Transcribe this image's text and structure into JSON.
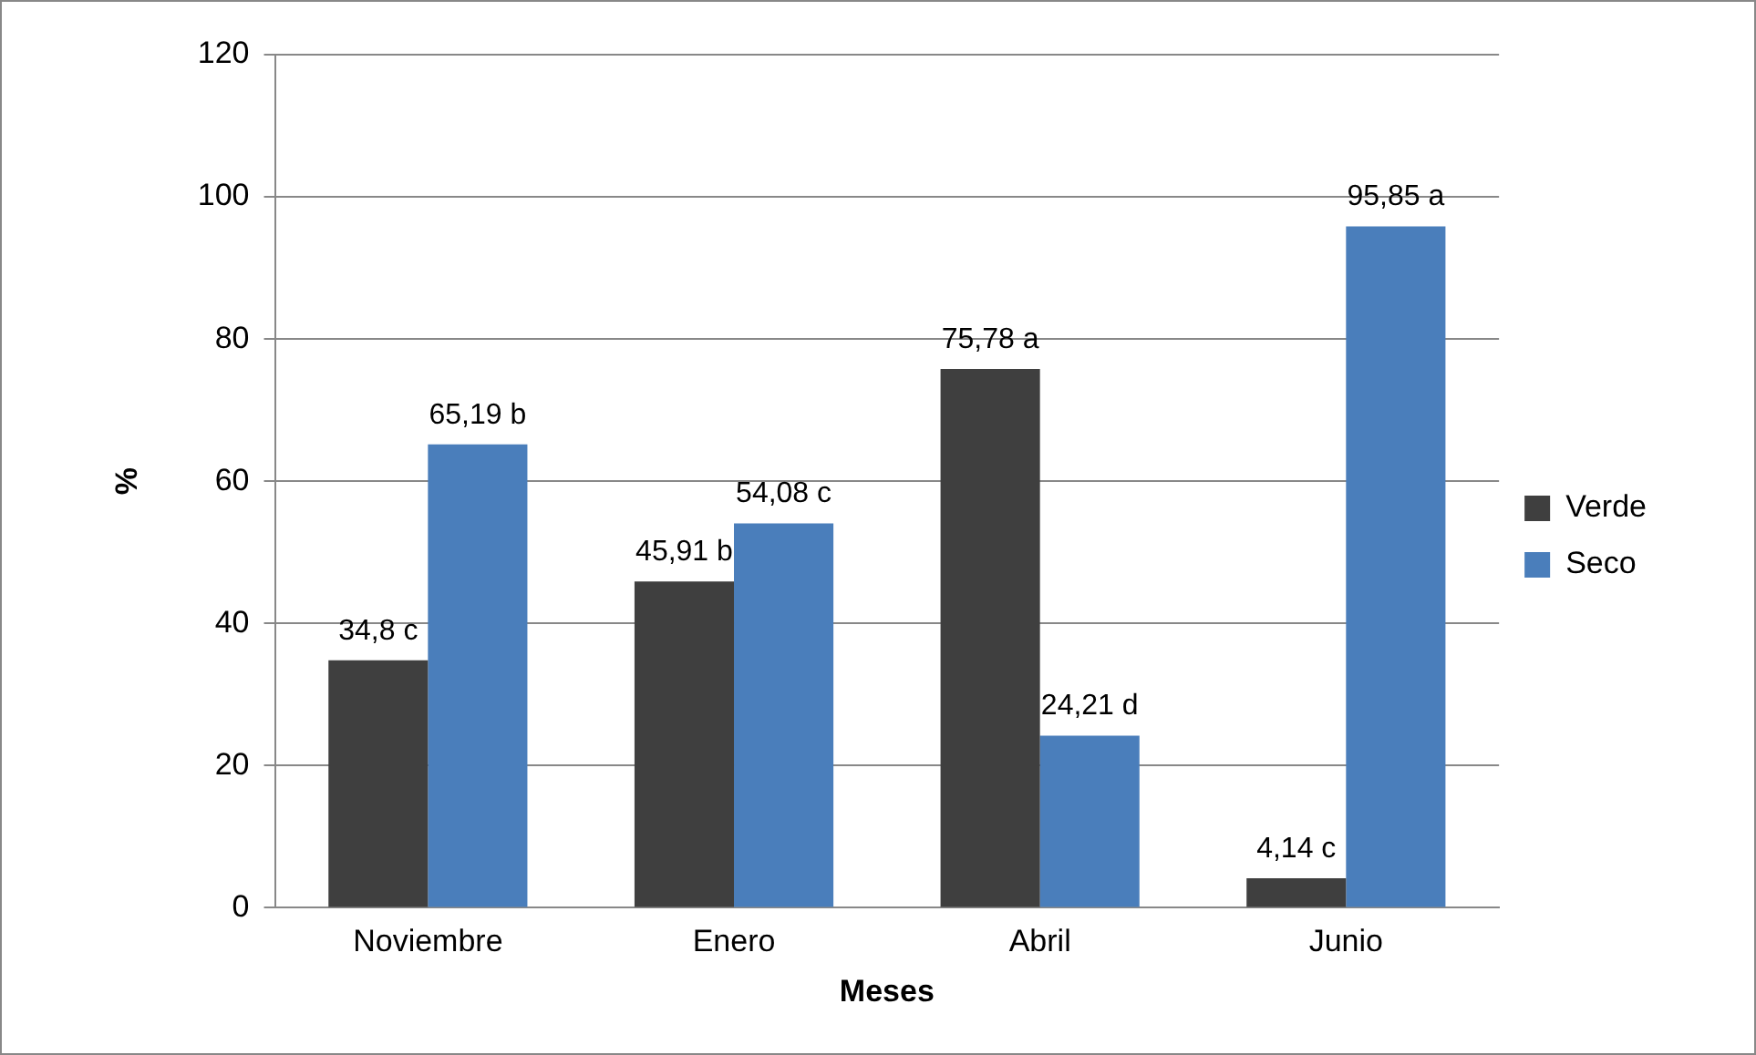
{
  "chart_data": {
    "type": "bar",
    "xlabel": "Meses",
    "ylabel": "%",
    "categories": [
      "Noviembre",
      "Enero",
      "Abril",
      "Junio"
    ],
    "series": [
      {
        "name": "Verde",
        "color": "#3f3f3f",
        "values": [
          34.8,
          45.91,
          75.78,
          4.14
        ],
        "value_labels": [
          "34,8 c",
          "45,91 b",
          "75,78 a",
          "4,14 c"
        ]
      },
      {
        "name": "Seco",
        "color": "#4a7ebb",
        "values": [
          65.19,
          54.08,
          24.21,
          95.85
        ],
        "value_labels": [
          "65,19 b",
          "54,08 c",
          "24,21 d",
          "95,85 a"
        ]
      }
    ],
    "ylim": [
      0,
      120
    ],
    "yticks": [
      0,
      20,
      40,
      60,
      80,
      100,
      120
    ],
    "grid": "y",
    "legend": "right"
  }
}
